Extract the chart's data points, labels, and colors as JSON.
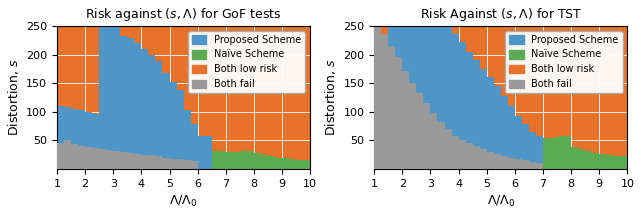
{
  "title_left": "Risk against $(s, \\Lambda)$ for GoF tests",
  "title_right": "Risk Against $(s, \\Lambda)$ for TST",
  "xlabel": "$\\Lambda/\\Lambda_0$",
  "ylabel": "Distortion, $s$",
  "xlim": [
    1,
    10
  ],
  "ylim": [
    0,
    250
  ],
  "xticks": [
    1,
    2,
    3,
    4,
    5,
    6,
    7,
    8,
    9,
    10
  ],
  "yticks": [
    50,
    100,
    150,
    200,
    250
  ],
  "color_proposed": "#4f96c8",
  "color_naive": "#5aab52",
  "color_both_low": "#e8722a",
  "color_both_fail": "#999999",
  "legend_labels": [
    "Proposed Scheme",
    "Naïve Scheme",
    "Both low risk",
    "Both fail"
  ],
  "figsize": [
    6.4,
    2.15
  ],
  "dpi": 100
}
